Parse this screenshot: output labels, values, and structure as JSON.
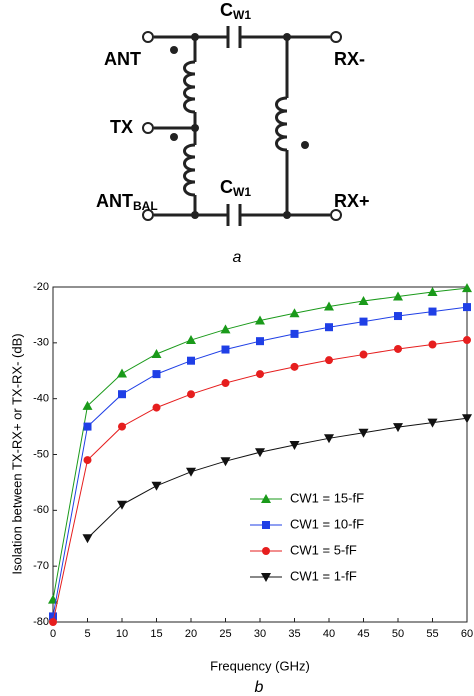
{
  "diagram": {
    "labels": {
      "ant": "ANT",
      "tx": "TX",
      "ant_bal": "ANT",
      "ant_bal_sub": "BAL",
      "cw1_top": "C",
      "cw1_top_sub": "W1",
      "cw1_bottom": "C",
      "cw1_bottom_sub": "W1",
      "rx_minus": "RX-",
      "rx_plus": "RX+"
    },
    "caption": "a"
  },
  "chart_data": {
    "type": "line",
    "caption": "b",
    "x_label": "Frequency (GHz)",
    "y_label": "Isolation between TX-RX+ or TX-RX- (dB)",
    "x": [
      0,
      5,
      10,
      15,
      20,
      25,
      30,
      35,
      40,
      45,
      50,
      55,
      60
    ],
    "series": [
      {
        "name": "CW1 = 15-fF",
        "color": "#1a9a1a",
        "marker": "triangle-up",
        "values": [
          -76,
          -41.3,
          -35.5,
          -32,
          -29.5,
          -27.6,
          -26,
          -24.7,
          -23.5,
          -22.5,
          -21.7,
          -20.9,
          -20.2
        ]
      },
      {
        "name": "CW1 = 10-fF",
        "color": "#1f3fe6",
        "marker": "square",
        "values": [
          -79,
          -45,
          -39.2,
          -35.6,
          -33.2,
          -31.2,
          -29.7,
          -28.4,
          -27.2,
          -26.2,
          -25.2,
          -24.4,
          -23.6
        ]
      },
      {
        "name": "CW1 = 5-fF",
        "color": "#e61e1e",
        "marker": "circle",
        "values": [
          -80,
          -51,
          -45,
          -41.6,
          -39.2,
          -37.2,
          -35.6,
          -34.3,
          -33.1,
          -32.1,
          -31.1,
          -30.3,
          -29.5
        ]
      },
      {
        "name": "CW1 = 1-fF",
        "color": "#111111",
        "marker": "triangle-down",
        "values": [
          null,
          -65,
          -59,
          -55.6,
          -53.1,
          -51.2,
          -49.6,
          -48.3,
          -47.1,
          -46.1,
          -45.1,
          -44.3,
          -43.5
        ]
      }
    ],
    "xlim": [
      0,
      60
    ],
    "ylim": [
      -80,
      -20
    ],
    "xticks": [
      0,
      5,
      10,
      15,
      20,
      25,
      30,
      35,
      40,
      45,
      50,
      55,
      60
    ],
    "yticks": [
      -80,
      -70,
      -60,
      -50,
      -40,
      -30,
      -20
    ]
  }
}
